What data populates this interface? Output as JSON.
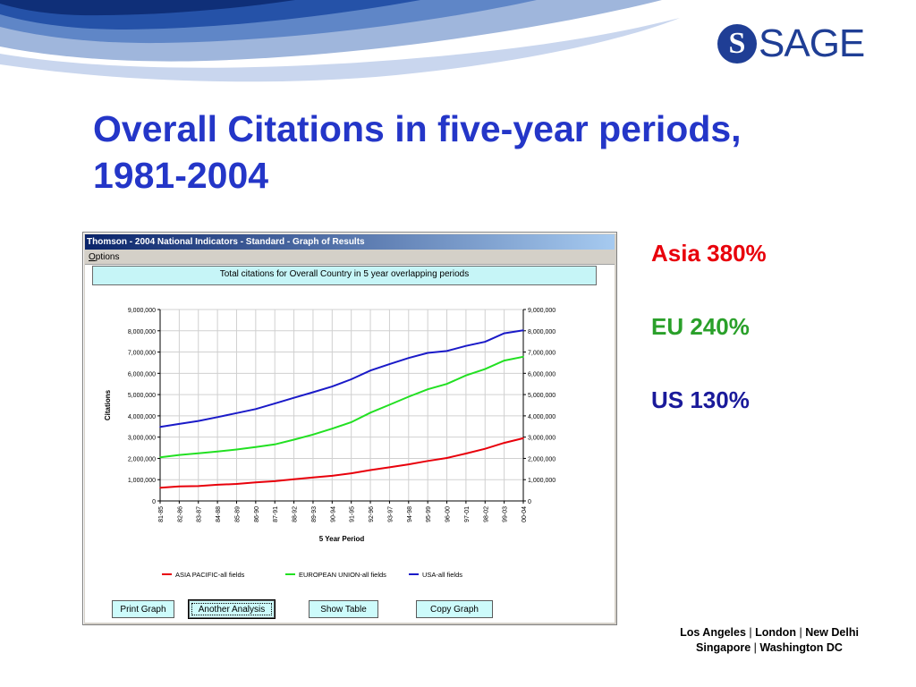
{
  "slide": {
    "title_lines": [
      "Overall Citations in five-year periods,",
      "1981-2004"
    ],
    "logo": {
      "letter": "S",
      "word": "SAGE",
      "icon": "sage-logo-icon"
    },
    "stats": [
      {
        "text": "Asia 380%",
        "color": "#e8000b"
      },
      {
        "text": "EU 240%",
        "color": "#2aa02a"
      },
      {
        "text": "US 130%",
        "color": "#1a1a9a"
      }
    ],
    "footer": {
      "line1": [
        "Los Angeles",
        "London",
        "New Delhi"
      ],
      "line2": [
        "Singapore",
        "Washington DC"
      ],
      "separator": "|"
    }
  },
  "window": {
    "title": "Thomson - 2004 National Indicators - Standard - Graph of Results",
    "menu": {
      "underlined": "O",
      "rest": "ptions"
    },
    "caption": "Total citations for Overall Country in 5 year overlapping periods",
    "buttons": {
      "print": "Print Graph",
      "another": "Another Analysis",
      "table": "Show Table",
      "copy": "Copy Graph"
    }
  },
  "chart_data": {
    "type": "line",
    "title": "",
    "xlabel": "5 Year Period",
    "ylabel": "Citations",
    "ylim": [
      0,
      9000000
    ],
    "yticks": [
      "0",
      "1,000,000",
      "2,000,000",
      "3,000,000",
      "4,000,000",
      "5,000,000",
      "6,000,000",
      "7,000,000",
      "8,000,000",
      "9,000,000"
    ],
    "categories": [
      "81-85",
      "82-86",
      "83-87",
      "84-88",
      "85-89",
      "86-90",
      "87-91",
      "88-92",
      "89-93",
      "90-94",
      "91-95",
      "92-96",
      "93-97",
      "94-98",
      "95-99",
      "96-00",
      "97-01",
      "98-02",
      "99-03",
      "00-04"
    ],
    "grid": true,
    "legend_position": "bottom",
    "series": [
      {
        "name": "ASIA PACIFIC-all fields",
        "color": "#e8000b",
        "values": [
          620000,
          680000,
          700000,
          760000,
          800000,
          870000,
          930000,
          1020000,
          1100000,
          1180000,
          1300000,
          1450000,
          1580000,
          1720000,
          1880000,
          2020000,
          2230000,
          2450000,
          2730000,
          2950000
        ]
      },
      {
        "name": "EUROPEAN UNION-all fields",
        "color": "#22e022",
        "values": [
          2050000,
          2160000,
          2240000,
          2320000,
          2420000,
          2530000,
          2660000,
          2880000,
          3120000,
          3400000,
          3700000,
          4150000,
          4520000,
          4900000,
          5250000,
          5500000,
          5900000,
          6200000,
          6600000,
          6780000
        ]
      },
      {
        "name": "USA-all fields",
        "color": "#1a1ac8",
        "values": [
          3480000,
          3620000,
          3760000,
          3940000,
          4130000,
          4320000,
          4580000,
          4850000,
          5110000,
          5380000,
          5720000,
          6130000,
          6430000,
          6720000,
          6960000,
          7050000,
          7290000,
          7480000,
          7880000,
          8020000
        ]
      }
    ]
  }
}
